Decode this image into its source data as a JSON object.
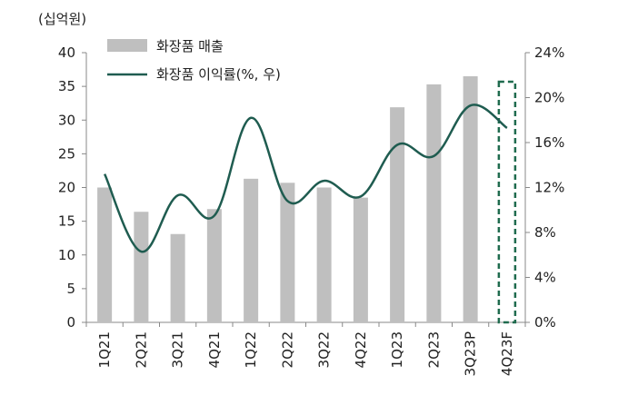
{
  "chart_data": {
    "type": "bar+line",
    "unit_label": "(십억원)",
    "categories": [
      "1Q21",
      "2Q21",
      "3Q21",
      "4Q21",
      "1Q22",
      "2Q22",
      "3Q22",
      "4Q22",
      "1Q23",
      "2Q23",
      "3Q23P",
      "4Q23F"
    ],
    "series": [
      {
        "name": "화장품 매출",
        "type": "bar",
        "axis": "left",
        "color": "#bfbfbf",
        "values": [
          20.0,
          16.4,
          13.1,
          16.8,
          21.3,
          20.7,
          20.0,
          18.5,
          31.9,
          35.3,
          36.5,
          null
        ]
      },
      {
        "name": "화장품 이익률(%, 우)",
        "type": "line",
        "axis": "right",
        "color": "#1f5c50",
        "values": [
          13.2,
          6.3,
          11.3,
          9.5,
          18.2,
          10.8,
          12.6,
          11.2,
          15.8,
          14.8,
          19.3,
          17.3
        ]
      }
    ],
    "left_axis": {
      "min": 0,
      "max": 40,
      "ticks": [
        "0",
        "5",
        "10",
        "15",
        "20",
        "25",
        "30",
        "35",
        "40"
      ]
    },
    "right_axis": {
      "min": 0,
      "max": 24,
      "ticks": [
        "0%",
        "4%",
        "8%",
        "12%",
        "16%",
        "20%",
        "24%"
      ]
    },
    "highlight_category": "4Q23F",
    "highlight_color": "#1f6b4e"
  }
}
